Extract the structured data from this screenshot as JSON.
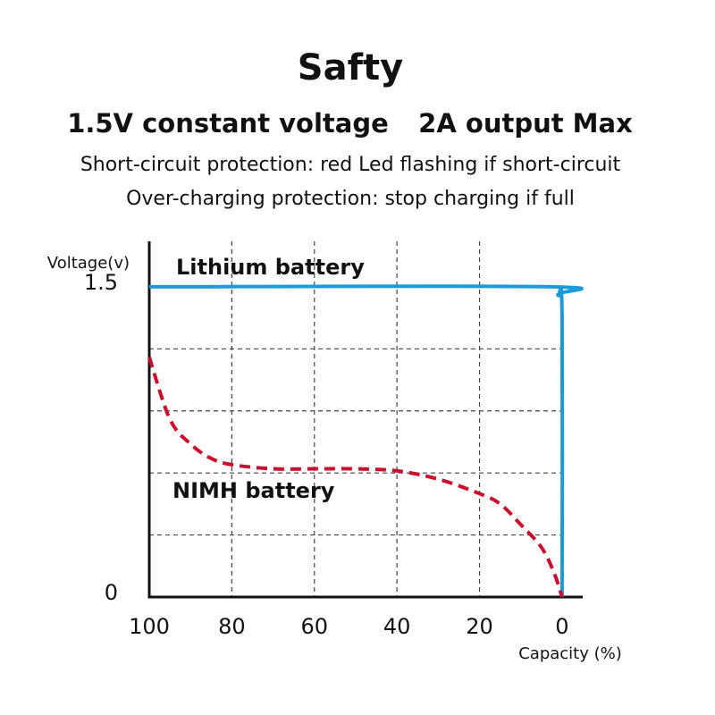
{
  "chart_data": {
    "type": "line",
    "title": "Safty",
    "subtitle": [
      "1.5V constant voltage",
      "2A output Max"
    ],
    "notes": [
      "Short-circuit protection: red Led flashing if short-circuit",
      "Over-charging protection: stop charging if full"
    ],
    "y_label": "Voltage(v)",
    "x_label": "Capacity (%)",
    "xlim": [
      100,
      -5
    ],
    "ylim": [
      0,
      1.72
    ],
    "xticks": [
      100,
      80,
      60,
      40,
      20,
      0
    ],
    "yticks": [
      0,
      1.5
    ],
    "xgrid": [
      80,
      60,
      40,
      20
    ],
    "ygrid": [
      0.3,
      0.6,
      0.9,
      1.2
    ],
    "series": [
      {
        "name": "Lithium battery",
        "color": "#1e9ad6",
        "dashed": false,
        "x": [
          100,
          3,
          1,
          0,
          0
        ],
        "values": [
          1.5,
          1.5,
          1.46,
          1.36,
          0
        ]
      },
      {
        "name": "NIMH battery",
        "color": "#c8102e",
        "dashed": true,
        "x": [
          100,
          95,
          90,
          85,
          80,
          70,
          60,
          50,
          40,
          30,
          20,
          15,
          10,
          5,
          2,
          0
        ],
        "values": [
          1.16,
          0.86,
          0.74,
          0.67,
          0.64,
          0.62,
          0.62,
          0.62,
          0.61,
          0.57,
          0.5,
          0.45,
          0.35,
          0.24,
          0.12,
          0
        ]
      }
    ]
  }
}
